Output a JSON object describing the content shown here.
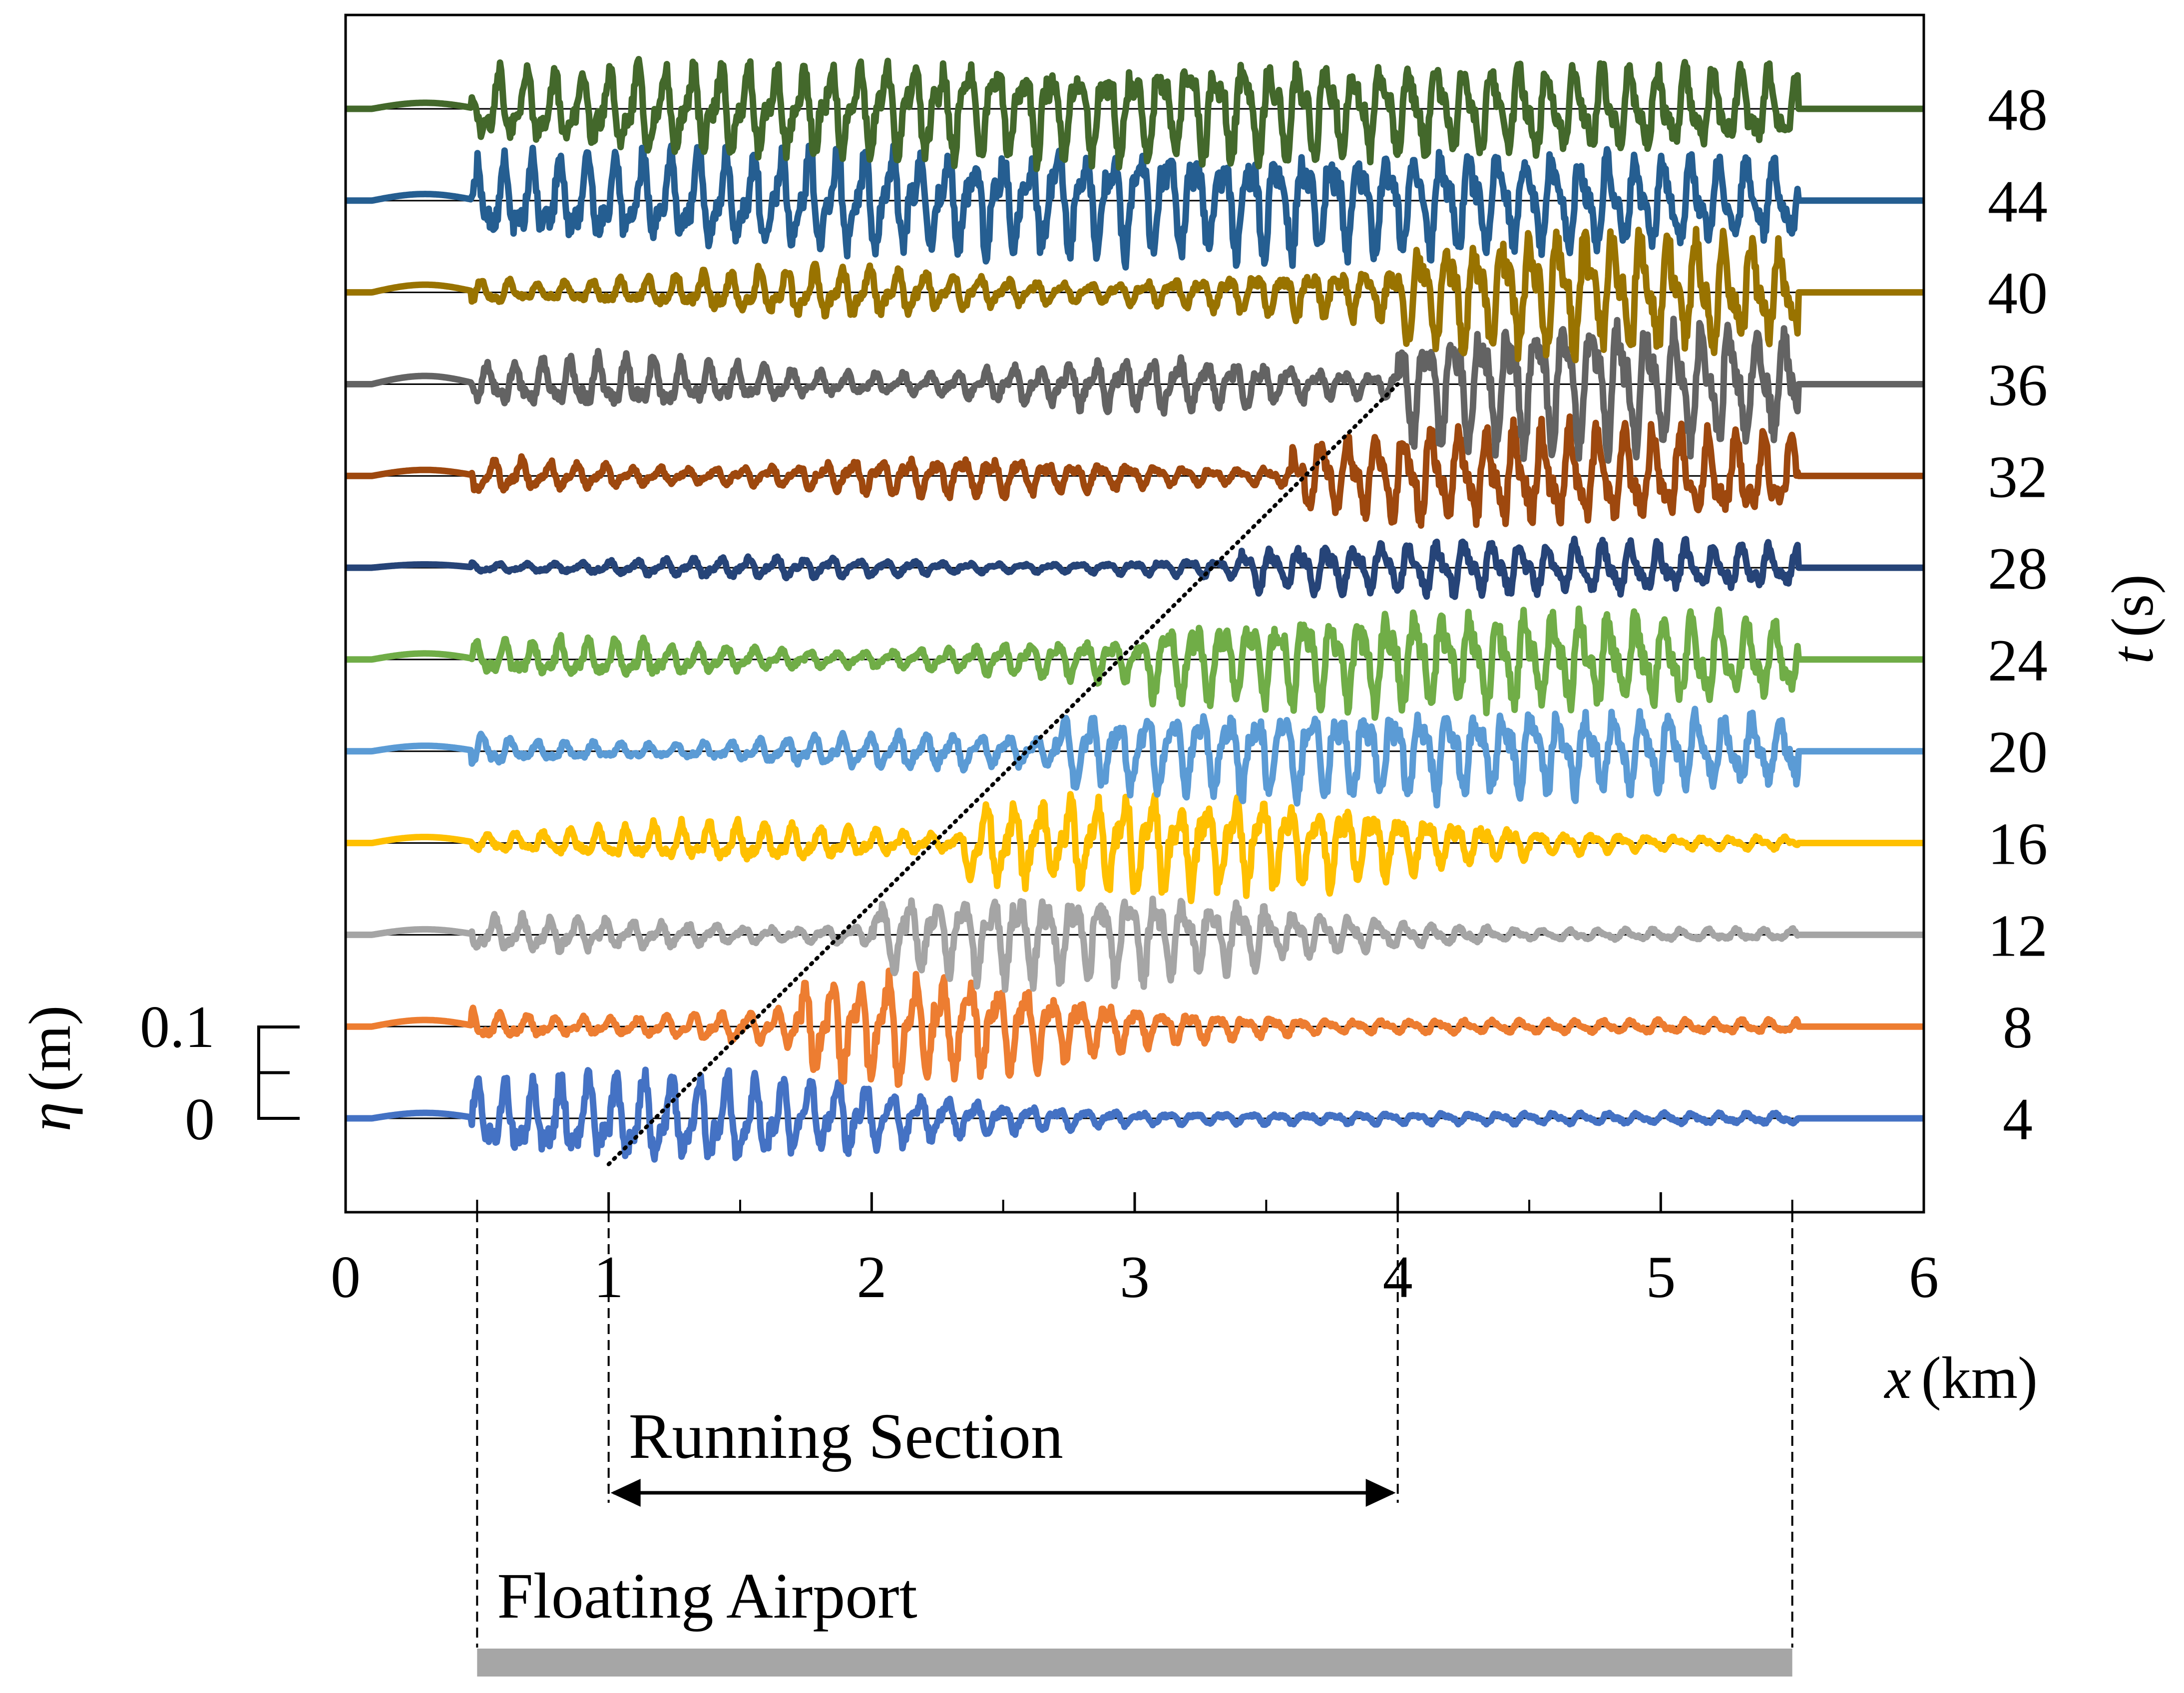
{
  "chart_data": {
    "type": "line",
    "title": "",
    "xlabel": "x (km)",
    "xlabel_var": "x",
    "xlabel_unit": "(km)",
    "ylabel": "t (s)",
    "ylabel_var": "t",
    "ylabel_unit": "(s)",
    "xlim": [
      0,
      6
    ],
    "x_ticks": [
      0,
      1,
      2,
      3,
      4,
      5,
      6
    ],
    "y_ticks": [
      4,
      8,
      12,
      16,
      20,
      24,
      28,
      32,
      36,
      40,
      44,
      48
    ],
    "eta_scale": {
      "label": "η (m)",
      "label_var": "η",
      "label_unit": "(m)",
      "ticks": [
        "0.1",
        "0"
      ],
      "span_m": 0.1
    },
    "airport": {
      "label": "Floating Airport",
      "x_start": 0.5,
      "x_end": 5.5
    },
    "running_section": {
      "label": "Running Section",
      "x_start": 1,
      "x_end": 4
    },
    "wavefront_line": {
      "x": [
        1,
        4
      ],
      "t": [
        2,
        36
      ],
      "style": "dotted"
    },
    "series": [
      {
        "name": "t = 4 s",
        "t": 4,
        "color": "#4472c4",
        "x_range": [
          0.4,
          2.0
        ],
        "peak_amplitude_m": 0.05
      },
      {
        "name": "t = 8 s",
        "t": 8,
        "color": "#ed7d31",
        "x_range": [
          1.7,
          2.6
        ],
        "peak_amplitude_m": 0.06
      },
      {
        "name": "t = 12 s",
        "t": 12,
        "color": "#a5a5a5",
        "x_range": [
          2.0,
          3.4
        ],
        "peak_amplitude_m": 0.05
      },
      {
        "name": "t = 16 s",
        "t": 16,
        "color": "#ffc000",
        "x_range": [
          2.35,
          3.9
        ],
        "peak_amplitude_m": 0.055
      },
      {
        "name": "t = 20 s",
        "t": 20,
        "color": "#5b9bd5",
        "x_range": [
          2.7,
          5.5
        ],
        "peak_amplitude_m": 0.05
      },
      {
        "name": "t = 24 s",
        "t": 24,
        "color": "#70ad47",
        "x_range": [
          3.05,
          5.5
        ],
        "peak_amplitude_m": 0.055
      },
      {
        "name": "t = 28 s",
        "t": 28,
        "color": "#264478",
        "x_range": [
          3.4,
          5.5
        ],
        "peak_amplitude_m": 0.03
      },
      {
        "name": "t = 32 s",
        "t": 32,
        "color": "#9e480e",
        "x_range": [
          3.6,
          5.5
        ],
        "peak_amplitude_m": 0.055
      },
      {
        "name": "t = 36 s",
        "t": 36,
        "color": "#636363",
        "x_range": [
          4.0,
          5.5
        ],
        "peak_amplitude_m": 0.075
      },
      {
        "name": "t = 40 s",
        "t": 40,
        "color": "#997300",
        "x_range": [
          4.0,
          5.5
        ],
        "peak_amplitude_m": 0.07
      },
      {
        "name": "t = 44 s",
        "t": 44,
        "color": "#255e91",
        "x_range": [
          0.5,
          5.5
        ],
        "peak_amplitude_m": 0.06
      },
      {
        "name": "t = 48 s",
        "t": 48,
        "color": "#43682b",
        "x_range": [
          0.5,
          5.5
        ],
        "peak_amplitude_m": 0.055
      }
    ]
  }
}
